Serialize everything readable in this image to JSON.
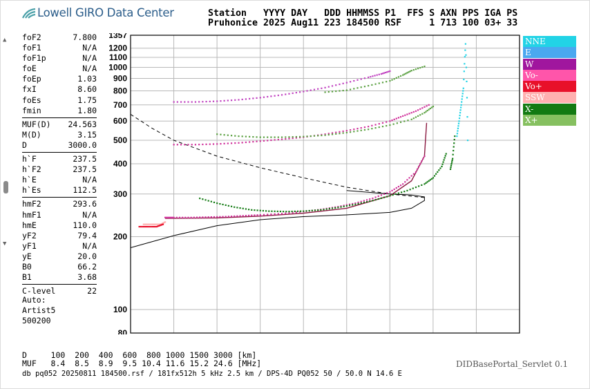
{
  "header": {
    "logo_text": "Lowell GIRO Data Center",
    "line1": "Station   YYYY DAY   DDD HHMMSS P1  FFS S AXN PPS IGA PS",
    "line2": "Pruhonice 2025 Aug11 223 184500 RSF     1 713 100 03+ 33"
  },
  "params_groups": [
    [
      [
        "foF2",
        "7.800"
      ],
      [
        "foF1",
        "N/A"
      ],
      [
        "foF1p",
        "N/A"
      ],
      [
        "foE",
        "N/A"
      ],
      [
        "foEp",
        "1.03"
      ],
      [
        "fxI",
        "8.60"
      ],
      [
        "foEs",
        "1.75"
      ],
      [
        "fmin",
        "1.80"
      ]
    ],
    [
      [
        "MUF(D)",
        "24.563"
      ],
      [
        "M(D)",
        "3.15"
      ],
      [
        "D",
        "3000.0"
      ]
    ],
    [
      [
        "h`F",
        "237.5"
      ],
      [
        "h`F2",
        "237.5"
      ],
      [
        "h`E",
        "N/A"
      ],
      [
        "h`Es",
        "112.5"
      ]
    ],
    [
      [
        "hmF2",
        "293.6"
      ],
      [
        "hmF1",
        "N/A"
      ],
      [
        "hmE",
        "110.0"
      ],
      [
        "yF2",
        "79.4"
      ],
      [
        "yF1",
        "N/A"
      ],
      [
        "yE",
        "20.0"
      ],
      [
        "B0",
        "66.2"
      ],
      [
        "B1",
        "3.68"
      ]
    ],
    [
      [
        "C-level",
        "22"
      ]
    ]
  ],
  "auto": {
    "line1": "Auto:",
    "line2": "Artist5",
    "line3": "500200"
  },
  "legend": [
    {
      "label": "NNE",
      "color": "#22d3e6"
    },
    {
      "label": "E",
      "color": "#4aa8f0"
    },
    {
      "label": "W",
      "color": "#a0169e"
    },
    {
      "label": "Vo-",
      "color": "#ff55aa"
    },
    {
      "label": "Vo+",
      "color": "#e8102a"
    },
    {
      "label": "SSW",
      "color": "#ffb0b0"
    },
    {
      "label": "X-",
      "color": "#127a12"
    },
    {
      "label": "X+",
      "color": "#86c060"
    }
  ],
  "bottom": {
    "d_row": "D     100  200  400  600  800 1000 1500 3000 [km]",
    "muf_row": "MUF   8.4  8.5  8.9  9.5 10.4 11.6 15.2 24.6 [MHz]",
    "file_row": "db pq052 20250811 184500.rsf / 181fx512h 5 kHz 2.5 km / DPS-4D PQ052 50 / 50.0 N 14.6 E",
    "portal": "DIDBasePortal_Servlet 0.1"
  },
  "chart_data": {
    "type": "scatter",
    "title": "",
    "xlabel": "",
    "ylabel": "",
    "xlim": [
      1,
      10
    ],
    "ylim": [
      80,
      1357
    ],
    "y_scale": "log",
    "x_ticks": [
      1,
      2,
      3,
      4,
      5,
      6,
      7,
      8,
      9,
      10
    ],
    "y_ticks": [
      80,
      100,
      200,
      300,
      400,
      500,
      600,
      700,
      800,
      900,
      1000,
      1100,
      1200,
      1357
    ],
    "grid": true,
    "legend_position": "right",
    "series": [
      {
        "name": "Vo-",
        "color": "#d0309a",
        "x": [
          1.8,
          2.0,
          2.4,
          2.8,
          3.2,
          3.6,
          4.0,
          4.5,
          5.0,
          5.4,
          5.8,
          6.2,
          6.6,
          7.0,
          7.3,
          7.6,
          7.8
        ],
        "y": [
          240,
          240,
          240,
          241,
          242,
          244,
          246,
          249,
          254,
          259,
          266,
          275,
          288,
          306,
          330,
          370,
          430
        ]
      },
      {
        "name": "Vo-",
        "color": "#d0309a",
        "x": [
          2.0,
          2.5,
          3.0,
          3.5,
          4.0,
          4.5,
          5.0,
          5.5,
          6.0,
          6.5,
          7.0,
          7.3,
          7.6,
          7.9
        ],
        "y": [
          480,
          480,
          483,
          488,
          496,
          505,
          515,
          530,
          548,
          570,
          600,
          630,
          660,
          700
        ]
      },
      {
        "name": "W",
        "color": "#c040c0",
        "x": [
          2.0,
          2.5,
          3.0,
          3.5,
          4.0,
          4.5,
          5.0,
          5.5,
          6.0,
          6.5,
          6.8,
          7.0
        ],
        "y": [
          720,
          720,
          725,
          735,
          750,
          770,
          795,
          825,
          865,
          910,
          940,
          965
        ]
      },
      {
        "name": "X-",
        "color": "#127a12",
        "x": [
          2.6,
          3.0,
          3.4,
          3.8,
          4.2,
          4.6,
          5.0,
          5.4,
          5.8,
          6.2,
          6.6,
          7.0,
          7.4,
          7.8,
          8.0,
          8.2,
          8.3
        ],
        "y": [
          288,
          275,
          265,
          258,
          255,
          254,
          255,
          258,
          264,
          272,
          282,
          295,
          310,
          330,
          350,
          390,
          440
        ]
      },
      {
        "name": "X+",
        "color": "#5aa040",
        "x": [
          3.0,
          3.5,
          4.0,
          4.5,
          5.0,
          5.5,
          6.0,
          6.5,
          7.0,
          7.5,
          7.8,
          8.0
        ],
        "y": [
          530,
          520,
          515,
          515,
          518,
          525,
          538,
          555,
          578,
          610,
          650,
          690
        ]
      },
      {
        "name": "X+",
        "color": "#5aa040",
        "x": [
          5.5,
          6.0,
          6.5,
          7.0,
          7.3,
          7.5,
          7.8
        ],
        "y": [
          790,
          805,
          840,
          880,
          930,
          970,
          1010
        ]
      },
      {
        "name": "NNE",
        "color": "#22d3e6",
        "x": [
          8.55,
          8.6,
          8.65,
          8.7,
          8.75,
          8.8
        ],
        "y": [
          520,
          600,
          700,
          820,
          1250,
          500
        ]
      },
      {
        "name": "X-",
        "color": "#127a12",
        "x": [
          8.4,
          8.45,
          8.5
        ],
        "y": [
          380,
          420,
          520
        ]
      },
      {
        "name": "SSW",
        "color": "#ffb0b0",
        "x": [
          1.3,
          1.5,
          1.7,
          1.8
        ],
        "y": [
          225,
          225,
          225,
          230
        ]
      },
      {
        "name": "Vo+",
        "color": "#e8102a",
        "x": [
          1.2,
          1.4,
          1.6,
          1.75
        ],
        "y": [
          220,
          220,
          220,
          225
        ]
      }
    ],
    "profile_line": {
      "x": [
        1.0,
        2.0,
        3.0,
        4.0,
        5.0,
        6.0,
        7.0,
        7.5,
        7.8,
        7.8,
        7.5,
        7.0,
        6.5,
        6.0
      ],
      "y": [
        180,
        202,
        222,
        235,
        242,
        246,
        252,
        262,
        282,
        292,
        297,
        300,
        305,
        310
      ]
    },
    "dashed_line": {
      "x": [
        1.0,
        1.5,
        2.0,
        3.0,
        4.0,
        5.0,
        6.0,
        7.0,
        7.8
      ],
      "y": [
        640,
        560,
        500,
        430,
        385,
        350,
        320,
        300,
        290
      ]
    },
    "height_curve": {
      "x": [
        1.8,
        3.0,
        4.0,
        5.0,
        6.0,
        7.0,
        7.5,
        7.8,
        7.85
      ],
      "y": [
        238,
        239,
        243,
        250,
        262,
        295,
        340,
        430,
        590
      ]
    }
  }
}
